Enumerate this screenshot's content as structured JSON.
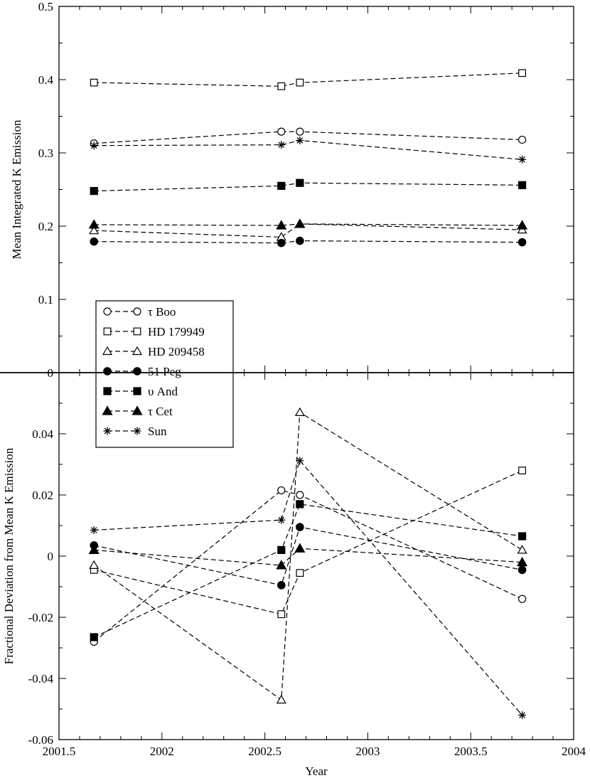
{
  "chart_data": [
    {
      "type": "line",
      "panel": "top",
      "ylabel": "Mean Integrated K Emission",
      "ylim": [
        0,
        0.5
      ],
      "yticks": [
        "0.1",
        "0.2",
        "0.3",
        "0.4",
        "0.5"
      ],
      "x": [
        2001.67,
        2002.58,
        2002.67,
        2003.75
      ],
      "series": [
        {
          "name": "τ Boo",
          "marker": "open-circle",
          "values": [
            0.313,
            0.329,
            0.329,
            0.318
          ]
        },
        {
          "name": "HD 179949",
          "marker": "open-square",
          "values": [
            0.396,
            0.391,
            0.396,
            0.409
          ]
        },
        {
          "name": "HD 209458",
          "marker": "open-triangle",
          "values": [
            0.194,
            0.185,
            0.203,
            0.195
          ]
        },
        {
          "name": "51 Peg",
          "marker": "filled-circle",
          "values": [
            0.179,
            0.177,
            0.18,
            0.178
          ]
        },
        {
          "name": "υ And",
          "marker": "filled-square",
          "values": [
            0.248,
            0.255,
            0.259,
            0.256
          ]
        },
        {
          "name": "τ Cet",
          "marker": "filled-triangle",
          "values": [
            0.202,
            0.201,
            0.203,
            0.201
          ]
        },
        {
          "name": "Sun",
          "marker": "asterisk",
          "values": [
            0.31,
            0.311,
            0.317,
            0.291
          ]
        }
      ]
    },
    {
      "type": "line",
      "panel": "bottom",
      "xlabel": "Year",
      "ylabel": "Fractional Deviation from Mean K Emission",
      "xlim": [
        2001.5,
        2004
      ],
      "xticks": [
        "2001.5",
        "2002",
        "2002.5",
        "2003",
        "2003.5",
        "2004"
      ],
      "ylim": [
        -0.06,
        0.06
      ],
      "yticks": [
        "0",
        "0.02",
        "0.04",
        "-0.06",
        "-0.04",
        "-0.02"
      ],
      "x": [
        2001.67,
        2002.58,
        2002.67,
        2003.75
      ],
      "series": [
        {
          "name": "τ Boo",
          "marker": "open-circle",
          "values": [
            -0.028,
            0.0215,
            0.02,
            -0.014
          ]
        },
        {
          "name": "HD 179949",
          "marker": "open-square",
          "values": [
            -0.0045,
            -0.019,
            -0.0055,
            0.028
          ]
        },
        {
          "name": "HD 209458",
          "marker": "open-triangle",
          "values": [
            -0.003,
            -0.047,
            0.047,
            0.002
          ]
        },
        {
          "name": "51 Peg",
          "marker": "filled-circle",
          "values": [
            0.0035,
            -0.0095,
            0.0095,
            -0.0045
          ]
        },
        {
          "name": "υ And",
          "marker": "filled-square",
          "values": [
            -0.0265,
            0.002,
            0.017,
            0.0065
          ]
        },
        {
          "name": "τ Cet",
          "marker": "filled-triangle",
          "values": [
            0.002,
            -0.003,
            0.0025,
            -0.002
          ]
        },
        {
          "name": "Sun",
          "marker": "asterisk",
          "values": [
            0.0085,
            0.0118,
            0.0312,
            -0.052
          ]
        }
      ]
    }
  ],
  "legend": {
    "placement": "bottom-left of top panel",
    "entries": [
      "τ Boo",
      "HD 179949",
      "HD 209458",
      "51 Peg",
      "υ And",
      "τ Cet",
      "Sun"
    ]
  },
  "shared_zero_label": "0",
  "colors": {
    "ink": "#000000",
    "background": "#ffffff"
  }
}
